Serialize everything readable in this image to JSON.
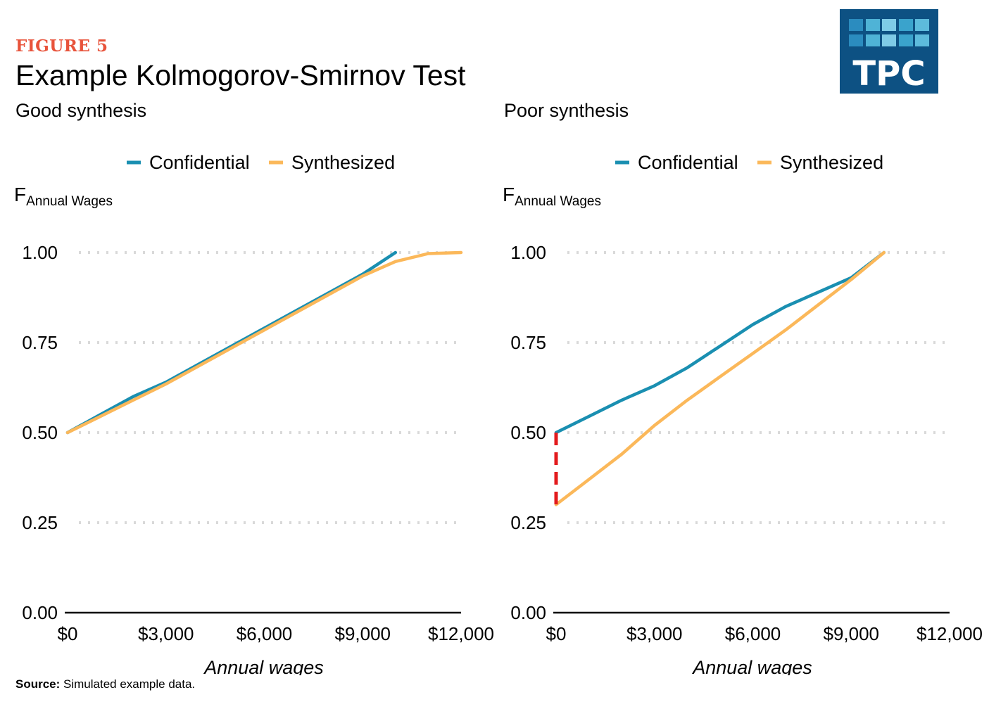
{
  "figure_label": "FIGURE 5",
  "title": "Example Kolmogorov-Smirnov Test",
  "logo": {
    "text": "TPC",
    "background": "#0d5183"
  },
  "source": {
    "label": "Source:",
    "text": "Simulated example data."
  },
  "colors": {
    "confidential": "#1a8fb1",
    "synthesized": "#fbb85a",
    "gap": "#e31a1c",
    "grid": "#d9d9d9"
  },
  "chart_data": [
    {
      "type": "line",
      "title": "Good synthesis",
      "ylabel_main": "F",
      "ylabel_sub": "Annual Wages",
      "xlabel": "Annual wages",
      "xlim": [
        0,
        12000
      ],
      "ylim": [
        0,
        1
      ],
      "x_ticks": [
        0,
        3000,
        6000,
        9000,
        12000
      ],
      "x_tick_labels": [
        "$0",
        "$3,000",
        "$6,000",
        "$9,000",
        "$12,000"
      ],
      "y_ticks": [
        0,
        0.25,
        0.5,
        0.75,
        1
      ],
      "y_tick_labels": [
        "0.00",
        "0.25",
        "0.50",
        "0.75",
        "1.00"
      ],
      "grid": "horizontal dotted",
      "legend_position": "top",
      "series": [
        {
          "name": "Confidential",
          "x": [
            0,
            1000,
            2000,
            3000,
            4000,
            5000,
            6000,
            7000,
            8000,
            9000,
            10000
          ],
          "y": [
            0.5,
            0.55,
            0.6,
            0.64,
            0.69,
            0.74,
            0.79,
            0.84,
            0.89,
            0.94,
            1.0
          ]
        },
        {
          "name": "Synthesized",
          "x": [
            0,
            1000,
            2000,
            3000,
            4000,
            5000,
            6000,
            7000,
            8000,
            9000,
            10000,
            11000,
            12000
          ],
          "y": [
            0.5,
            0.545,
            0.59,
            0.635,
            0.685,
            0.735,
            0.785,
            0.835,
            0.885,
            0.935,
            0.975,
            0.997,
            1.0
          ]
        }
      ]
    },
    {
      "type": "line",
      "title": "Poor synthesis",
      "ylabel_main": "F",
      "ylabel_sub": "Annual Wages",
      "xlabel": "Annual wages",
      "xlim": [
        0,
        12000
      ],
      "ylim": [
        0,
        1
      ],
      "x_ticks": [
        0,
        3000,
        6000,
        9000,
        12000
      ],
      "x_tick_labels": [
        "$0",
        "$3,000",
        "$6,000",
        "$9,000",
        "$12,000"
      ],
      "y_ticks": [
        0,
        0.25,
        0.5,
        0.75,
        1
      ],
      "y_tick_labels": [
        "0.00",
        "0.25",
        "0.50",
        "0.75",
        "1.00"
      ],
      "grid": "horizontal dotted",
      "legend_position": "top",
      "series": [
        {
          "name": "Confidential",
          "x": [
            0,
            1000,
            2000,
            3000,
            4000,
            5000,
            6000,
            7000,
            8000,
            9000,
            10000
          ],
          "y": [
            0.5,
            0.545,
            0.59,
            0.63,
            0.68,
            0.74,
            0.8,
            0.85,
            0.89,
            0.93,
            1.0
          ]
        },
        {
          "name": "Synthesized",
          "x": [
            0,
            1000,
            2000,
            3000,
            4000,
            5000,
            6000,
            7000,
            8000,
            9000,
            10000
          ],
          "y": [
            0.3,
            0.37,
            0.44,
            0.52,
            0.59,
            0.655,
            0.72,
            0.785,
            0.855,
            0.925,
            1.0
          ]
        }
      ],
      "gap_marker": {
        "x": 0,
        "y_from": 0.3,
        "y_to": 0.5
      }
    }
  ]
}
